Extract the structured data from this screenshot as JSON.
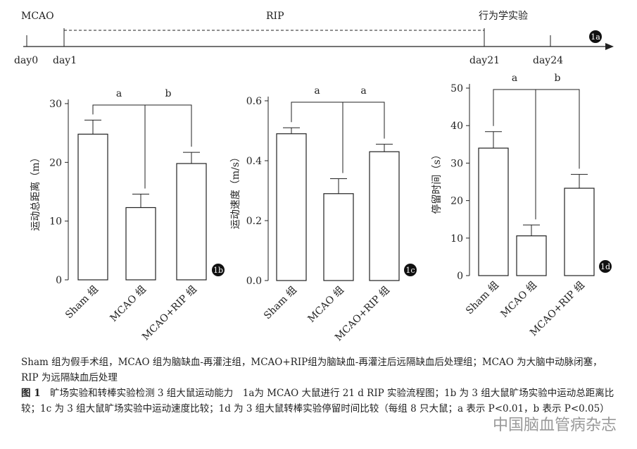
{
  "timeline": {
    "labels": [
      "MCAO",
      "RIP",
      "行为学实验"
    ],
    "days": [
      "day0",
      "day1",
      "day21",
      "day24"
    ],
    "panel": "1a"
  },
  "chart_data": [
    {
      "type": "bar",
      "ylabel": "运动总距离（m）",
      "categories": [
        "Sham 组",
        "MCAO 组",
        "MCAO+RIP 组"
      ],
      "values": [
        24.8,
        12.3,
        19.8
      ],
      "errors": [
        2.4,
        2.3,
        1.9
      ],
      "ylim": [
        0,
        30
      ],
      "yticks": [
        0,
        10,
        20,
        30
      ],
      "significance": [
        "a",
        "b"
      ],
      "panel": "1b",
      "color": "#ffffff"
    },
    {
      "type": "bar",
      "ylabel": "运动速度（m/s）",
      "categories": [
        "Sham 组",
        "MCAO 组",
        "MCAO+RIP 组"
      ],
      "values": [
        0.49,
        0.29,
        0.43
      ],
      "errors": [
        0.02,
        0.05,
        0.025
      ],
      "ylim": [
        0,
        0.6
      ],
      "yticks": [
        {
          "value": 0,
          "label": "0.0"
        },
        0.2,
        0.4,
        0.6
      ],
      "significance": [
        "a",
        "a"
      ],
      "panel": "1c",
      "color": "#ffffff"
    },
    {
      "type": "bar",
      "ylabel": "停留时间（s）",
      "categories": [
        "Sham 组",
        "MCAO 组",
        "MCAO+RIP 组"
      ],
      "values": [
        34,
        10.6,
        23.3
      ],
      "errors": [
        4.4,
        2.9,
        3.7
      ],
      "ylim": [
        0,
        50
      ],
      "yticks": [
        0,
        10,
        20,
        30,
        40,
        50
      ],
      "significance": [
        "a",
        "b"
      ],
      "panel": "1d",
      "color": "#ffffff"
    }
  ],
  "caption": {
    "note": "Sham 组为假手术组，MCAO 组为脑缺血-再灌注组，MCAO+RIP组为脑缺血-再灌注后远隔缺血后处理组；MCAO 为大脑中动脉闭塞，RIP 为远隔缺血后处理",
    "figure": "图 1",
    "text": "旷场实验和转棒实验检测 3 组大鼠运动能力　1a为 MCAO 大鼠进行 21 d RIP 实验流程图；1b 为 3 组大鼠旷场实验中运动总距离比较；1c 为 3 组大鼠旷场实验中运动速度比较；1d 为 3 组大鼠转棒实验停留时间比较（每组 8 只大鼠；a 表示 P<0.01，b 表示 P<0.05）"
  },
  "watermark": "中国脑血管病杂志"
}
